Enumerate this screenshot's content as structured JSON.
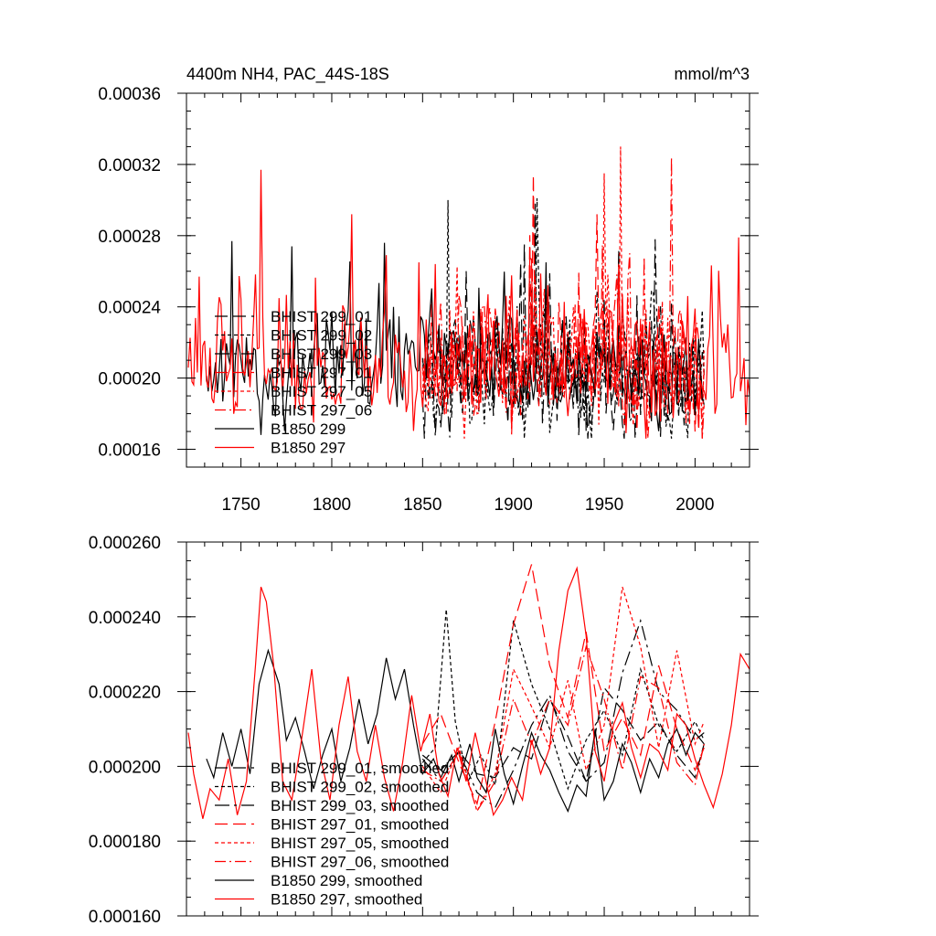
{
  "chart_data": [
    {
      "type": "line",
      "title": "4400m NH4, PAC_44S-18S",
      "units": "mmol/m^3",
      "xlim": [
        1720,
        2030
      ],
      "ylim": [
        0.00015,
        0.00036
      ],
      "xticks": [
        1750,
        1800,
        1850,
        1900,
        1950,
        2000
      ],
      "xtick_labels": [
        "1750",
        "1800",
        "1850",
        "1900",
        "1950",
        "2000"
      ],
      "yticks": [
        0.00016,
        0.0002,
        0.00024,
        0.00028,
        0.00032,
        0.00036
      ],
      "ytick_labels": [
        "0.00016",
        "0.00020",
        "0.00024",
        "0.00028",
        "0.00032",
        "0.00036"
      ],
      "legend_position": "lower-left",
      "series": [
        {
          "name": "BHIST 299_01",
          "color": "#000000",
          "dash": "long-dash",
          "x_start": 1850,
          "x_end": 2005,
          "mean": 0.000205,
          "sd": 2e-05,
          "seed": 11,
          "spikes": [
            [
              1912,
              0.000298
            ],
            [
              1958,
              0.000272
            ]
          ]
        },
        {
          "name": "BHIST 299_02",
          "color": "#000000",
          "dash": "short-dash",
          "x_start": 1850,
          "x_end": 2005,
          "mean": 0.000203,
          "sd": 2.1e-05,
          "seed": 12,
          "spikes": [
            [
              1864,
              0.0003
            ],
            [
              1913,
              0.000301
            ]
          ]
        },
        {
          "name": "BHIST 299_03",
          "color": "#000000",
          "dash": "dash-dot-long",
          "x_start": 1850,
          "x_end": 2005,
          "mean": 0.000204,
          "sd": 2e-05,
          "seed": 13,
          "spikes": [
            [
              1978,
              0.000278
            ]
          ]
        },
        {
          "name": "BHIST 297_01",
          "color": "#ff0000",
          "dash": "long-dash",
          "x_start": 1850,
          "x_end": 2005,
          "mean": 0.000207,
          "sd": 2.2e-05,
          "seed": 14,
          "spikes": [
            [
              1911,
              0.000314
            ],
            [
              1946,
              0.000292
            ]
          ]
        },
        {
          "name": "BHIST 297_05",
          "color": "#ff0000",
          "dash": "short-dash",
          "x_start": 1850,
          "x_end": 2005,
          "mean": 0.000206,
          "sd": 2.2e-05,
          "seed": 15,
          "spikes": [
            [
              1959,
              0.00033
            ],
            [
              1950,
              0.000315
            ]
          ]
        },
        {
          "name": "BHIST 297_06",
          "color": "#ff0000",
          "dash": "dash-dot",
          "x_start": 1850,
          "x_end": 2005,
          "mean": 0.000205,
          "sd": 2.1e-05,
          "seed": 16,
          "spikes": [
            [
              1987,
              0.000324
            ]
          ]
        },
        {
          "name": "B1850 299",
          "color": "#000000",
          "dash": "solid",
          "x_start": 1731,
          "x_end": 2005,
          "mean": 0.000204,
          "sd": 1.9e-05,
          "seed": 17,
          "spikes": [
            [
              1745,
              0.000277
            ],
            [
              1778,
              0.000274
            ],
            [
              1829,
              0.000276
            ],
            [
              1918,
              0.000265
            ]
          ]
        },
        {
          "name": "B1850 297",
          "color": "#ff0000",
          "dash": "solid",
          "x_start": 1721,
          "x_end": 2030,
          "mean": 0.000205,
          "sd": 2.1e-05,
          "seed": 18,
          "spikes": [
            [
              1761,
              0.000317
            ],
            [
              1727,
              0.000257
            ],
            [
              1811,
              0.000292
            ],
            [
              1848,
              0.000265
            ],
            [
              2024,
              0.000279
            ]
          ]
        }
      ]
    },
    {
      "type": "line",
      "xlim": [
        1720,
        2030
      ],
      "ylim": [
        0.00016,
        0.00026
      ],
      "xticks": [
        1750,
        1800,
        1850,
        1900,
        1950,
        2000
      ],
      "yticks": [
        0.00016,
        0.00018,
        0.0002,
        0.00022,
        0.00024,
        0.00026
      ],
      "ytick_labels": [
        "0.000160",
        "0.000180",
        "0.000200",
        "0.000220",
        "0.000240",
        "0.000260"
      ],
      "legend_position": "lower-left",
      "series": [
        {
          "name": "BHIST 299_01, smoothed",
          "color": "#000000",
          "dash": "long-dash",
          "x": [
            1850,
            1860,
            1870,
            1880,
            1890,
            1900,
            1910,
            1920,
            1930,
            1940,
            1950,
            1960,
            1970,
            1980,
            1990,
            2000,
            2005
          ],
          "values": [
            0.000203,
            0.000199,
            0.000204,
            0.000198,
            0.000197,
            0.000205,
            0.000202,
            0.000218,
            0.000208,
            0.000196,
            0.000221,
            0.000215,
            0.000207,
            0.000212,
            0.000203,
            0.000197,
            0.000206
          ]
        },
        {
          "name": "BHIST 299_02, smoothed",
          "color": "#000000",
          "dash": "short-dash",
          "x": [
            1850,
            1857,
            1863,
            1868,
            1875,
            1882,
            1890,
            1900,
            1910,
            1920,
            1930,
            1940,
            1950,
            1960,
            1970,
            1980,
            1990,
            2000,
            2005
          ],
          "values": [
            0.000201,
            0.000205,
            0.000242,
            0.000212,
            0.000196,
            0.000203,
            0.000195,
            0.000239,
            0.000222,
            0.00021,
            0.000194,
            0.000207,
            0.000215,
            0.000203,
            0.000226,
            0.000211,
            0.000204,
            0.000212,
            0.000207
          ]
        },
        {
          "name": "BHIST 299_03, smoothed",
          "color": "#000000",
          "dash": "dash-dot-long",
          "x": [
            1850,
            1860,
            1870,
            1880,
            1890,
            1900,
            1910,
            1920,
            1930,
            1940,
            1950,
            1960,
            1970,
            1980,
            1990,
            2000,
            2005
          ],
          "values": [
            0.000202,
            0.000196,
            0.000204,
            0.000193,
            0.000189,
            0.000199,
            0.000211,
            0.000219,
            0.000204,
            0.000196,
            0.000201,
            0.000225,
            0.000239,
            0.00022,
            0.000215,
            0.000207,
            0.000209
          ]
        },
        {
          "name": "BHIST 297_01, smoothed",
          "color": "#ff0000",
          "dash": "long-dash",
          "x": [
            1850,
            1860,
            1870,
            1880,
            1890,
            1900,
            1910,
            1920,
            1930,
            1940,
            1950,
            1960,
            1970,
            1980,
            1990,
            2000,
            2005
          ],
          "values": [
            0.000206,
            0.000214,
            0.000201,
            0.00019,
            0.000212,
            0.000238,
            0.000254,
            0.000227,
            0.000213,
            0.000236,
            0.000204,
            0.000213,
            0.000203,
            0.000227,
            0.00021,
            0.000199,
            0.000205
          ]
        },
        {
          "name": "BHIST 297_05, smoothed",
          "color": "#ff0000",
          "dash": "short-dash",
          "x": [
            1850,
            1860,
            1870,
            1880,
            1890,
            1900,
            1910,
            1920,
            1930,
            1940,
            1950,
            1960,
            1970,
            1980,
            1990,
            2000,
            2005
          ],
          "values": [
            0.0002,
            0.000193,
            0.000205,
            0.000188,
            0.000198,
            0.000226,
            0.000216,
            0.000205,
            0.000223,
            0.000199,
            0.000211,
            0.000248,
            0.000232,
            0.000205,
            0.000231,
            0.000206,
            0.000212
          ]
        },
        {
          "name": "BHIST 297_06, smoothed",
          "color": "#ff0000",
          "dash": "dash-dot",
          "x": [
            1850,
            1860,
            1870,
            1880,
            1890,
            1900,
            1910,
            1920,
            1930,
            1940,
            1950,
            1960,
            1970,
            1980,
            1990,
            2000,
            2005
          ],
          "values": [
            0.000199,
            0.000196,
            0.000204,
            0.000188,
            0.000196,
            0.000218,
            0.000206,
            0.000218,
            0.000211,
            0.000232,
            0.000218,
            0.000199,
            0.000224,
            0.000221,
            0.000201,
            0.000195,
            0.000206
          ]
        },
        {
          "name": "B1850 299, smoothed",
          "color": "#000000",
          "dash": "solid",
          "x": [
            1731,
            1735,
            1740,
            1745,
            1750,
            1755,
            1760,
            1765,
            1771,
            1775,
            1780,
            1785,
            1790,
            1795,
            1800,
            1805,
            1810,
            1815,
            1820,
            1825,
            1830,
            1835,
            1840,
            1845,
            1850,
            1856,
            1860,
            1866,
            1870,
            1876,
            1880,
            1885,
            1890,
            1895,
            1900,
            1905,
            1910,
            1915,
            1920,
            1925,
            1930,
            1935,
            1940,
            1945,
            1950,
            1955,
            1960,
            1965,
            1970,
            1975,
            1980,
            1985,
            1990,
            1995,
            2000,
            2005
          ],
          "values": [
            0.000202,
            0.000197,
            0.000209,
            0.0002,
            0.00021,
            0.000198,
            0.000222,
            0.000231,
            0.000222,
            0.000207,
            0.000213,
            0.000204,
            0.000194,
            0.000203,
            0.00021,
            0.000196,
            0.000205,
            0.000218,
            0.000206,
            0.000214,
            0.000229,
            0.000218,
            0.000226,
            0.000211,
            0.000198,
            0.000202,
            0.000197,
            0.000203,
            0.000196,
            0.000206,
            0.000197,
            0.000193,
            0.00021,
            0.000198,
            0.00019,
            0.0002,
            0.000209,
            0.000203,
            0.000199,
            0.000193,
            0.000188,
            0.000195,
            0.000192,
            0.00021,
            0.000191,
            0.000196,
            0.000206,
            0.000201,
            0.000193,
            0.000202,
            0.000197,
            0.000206,
            0.00021,
            0.000203,
            0.000209,
            0.000206
          ]
        },
        {
          "name": "B1850 297, smoothed",
          "color": "#ff0000",
          "dash": "solid",
          "x": [
            1721,
            1724,
            1729,
            1733,
            1738,
            1743,
            1748,
            1753,
            1758,
            1761,
            1764,
            1768,
            1773,
            1778,
            1783,
            1789,
            1794,
            1799,
            1804,
            1809,
            1814,
            1819,
            1824,
            1829,
            1834,
            1839,
            1844,
            1849,
            1854,
            1859,
            1864,
            1869,
            1874,
            1879,
            1884,
            1889,
            1894,
            1899,
            1905,
            1910,
            1915,
            1920,
            1925,
            1930,
            1935,
            1940,
            1945,
            1950,
            1955,
            1960,
            1965,
            1970,
            1975,
            1980,
            1985,
            1990,
            1995,
            2000,
            2005,
            2010,
            2015,
            2020,
            2025,
            2030
          ],
          "values": [
            0.000209,
            0.000198,
            0.000186,
            0.000194,
            0.000191,
            0.000202,
            0.000187,
            0.000196,
            0.000227,
            0.000248,
            0.000244,
            0.000227,
            0.000196,
            0.000191,
            0.000206,
            0.000226,
            0.000202,
            0.000191,
            0.000211,
            0.000224,
            0.000204,
            0.000196,
            0.000211,
            0.000197,
            0.000188,
            0.000201,
            0.000219,
            0.000204,
            0.000214,
            0.000198,
            0.000192,
            0.000205,
            0.000196,
            0.000209,
            0.000198,
            0.000187,
            0.000191,
            0.000197,
            0.000191,
            0.000207,
            0.000198,
            0.000205,
            0.000231,
            0.000247,
            0.000253,
            0.000235,
            0.000204,
            0.000196,
            0.000211,
            0.000217,
            0.000205,
            0.000197,
            0.000206,
            0.000204,
            0.000199,
            0.000214,
            0.000211,
            0.000202,
            0.000195,
            0.000189,
            0.000198,
            0.000211,
            0.00023,
            0.000226
          ]
        }
      ]
    }
  ]
}
